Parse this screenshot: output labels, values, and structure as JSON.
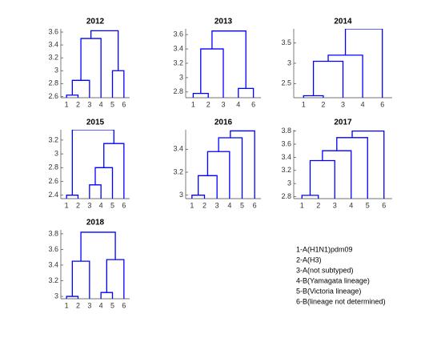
{
  "chart_data": [
    {
      "type": "dendrogram",
      "title": "2012",
      "color": "#0000ff",
      "categories": [
        "1",
        "2",
        "3",
        "4",
        "5",
        "6"
      ],
      "ylim": [
        2.58,
        3.65
      ],
      "yticks": [
        2.6,
        2.8,
        3,
        3.2,
        3.4,
        3.6
      ],
      "links": [
        [
          0,
          1,
          2.62
        ],
        [
          6,
          2,
          2.85
        ],
        [
          7,
          3,
          3.5
        ],
        [
          4,
          5,
          3.0
        ],
        [
          8,
          9,
          3.62
        ]
      ]
    },
    {
      "type": "dendrogram",
      "title": "2013",
      "color": "#0000ff",
      "categories": [
        "1",
        "2",
        "3",
        "4",
        "6"
      ],
      "ylim": [
        2.72,
        3.68
      ],
      "yticks": [
        2.8,
        3,
        3.2,
        3.4,
        3.6
      ],
      "links": [
        [
          0,
          1,
          2.78
        ],
        [
          5,
          2,
          3.4
        ],
        [
          3,
          4,
          2.85
        ],
        [
          6,
          7,
          3.65
        ]
      ]
    },
    {
      "type": "dendrogram",
      "title": "2014",
      "color": "#0000ff",
      "categories": [
        "1",
        "2",
        "3",
        "4",
        "6"
      ],
      "ylim": [
        2.15,
        3.85
      ],
      "yticks": [
        2.5,
        3,
        3.5
      ],
      "links": [
        [
          0,
          1,
          2.2
        ],
        [
          5,
          2,
          3.05
        ],
        [
          6,
          3,
          3.2
        ],
        [
          7,
          4,
          3.85
        ]
      ]
    },
    {
      "type": "dendrogram",
      "title": "2015",
      "color": "#0000ff",
      "categories": [
        "1",
        "2",
        "3",
        "4",
        "5",
        "6"
      ],
      "ylim": [
        2.35,
        3.35
      ],
      "yticks": [
        2.4,
        2.6,
        2.8,
        3,
        3.2
      ],
      "links": [
        [
          0,
          1,
          2.4
        ],
        [
          2,
          3,
          2.55
        ],
        [
          7,
          4,
          2.8
        ],
        [
          8,
          5,
          3.15
        ],
        [
          6,
          9,
          3.35
        ]
      ]
    },
    {
      "type": "dendrogram",
      "title": "2016",
      "color": "#0000ff",
      "categories": [
        "1",
        "2",
        "3",
        "4",
        "5",
        "6"
      ],
      "ylim": [
        2.97,
        3.57
      ],
      "yticks": [
        3,
        3.2,
        3.4
      ],
      "links": [
        [
          0,
          1,
          3.0
        ],
        [
          6,
          2,
          3.17
        ],
        [
          7,
          3,
          3.38
        ],
        [
          8,
          4,
          3.5
        ],
        [
          9,
          5,
          3.56
        ]
      ]
    },
    {
      "type": "dendrogram",
      "title": "2017",
      "color": "#0000ff",
      "categories": [
        "1",
        "2",
        "3",
        "4",
        "5",
        "6"
      ],
      "ylim": [
        2.77,
        3.82
      ],
      "yticks": [
        2.8,
        3,
        3.2,
        3.4,
        3.6,
        3.8
      ],
      "links": [
        [
          0,
          1,
          2.82
        ],
        [
          6,
          2,
          3.35
        ],
        [
          7,
          3,
          3.5
        ],
        [
          8,
          4,
          3.7
        ],
        [
          9,
          5,
          3.8
        ]
      ]
    },
    {
      "type": "dendrogram",
      "title": "2018",
      "color": "#0000ff",
      "categories": [
        "1",
        "2",
        "3",
        "4",
        "5",
        "6"
      ],
      "ylim": [
        2.97,
        3.85
      ],
      "yticks": [
        3,
        3.2,
        3.4,
        3.6,
        3.8
      ],
      "links": [
        [
          0,
          1,
          3.0
        ],
        [
          6,
          2,
          3.45
        ],
        [
          3,
          4,
          3.05
        ],
        [
          8,
          5,
          3.47
        ],
        [
          7,
          9,
          3.82
        ]
      ]
    }
  ],
  "legend": [
    "1-A(H1N1)pdm09",
    "2-A(H3)",
    "3-A(not subtyped)",
    "4-B(Yamagata lineage)",
    "5-B(Victoria lineage)",
    "6-B(lineage not determined)"
  ]
}
